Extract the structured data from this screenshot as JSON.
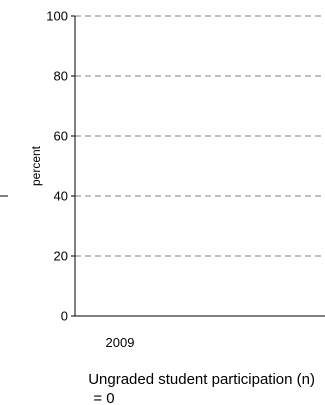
{
  "chart_data": {
    "type": "bar",
    "title": "",
    "ylabel": "percent",
    "xlabel": "",
    "categories": [
      "2009"
    ],
    "series": [
      {
        "values": [
          0
        ]
      }
    ],
    "ylim": [
      0,
      100
    ],
    "yticks": [
      0,
      20,
      40,
      60,
      80,
      100
    ],
    "grid": true,
    "grid_style": "dashed",
    "legend": "none"
  },
  "caption": {
    "line1": "Ungraded student participation (n)",
    "line2": "= 0"
  },
  "colors": {
    "axis": "#000000",
    "grid": "#808080",
    "text": "#000000"
  }
}
